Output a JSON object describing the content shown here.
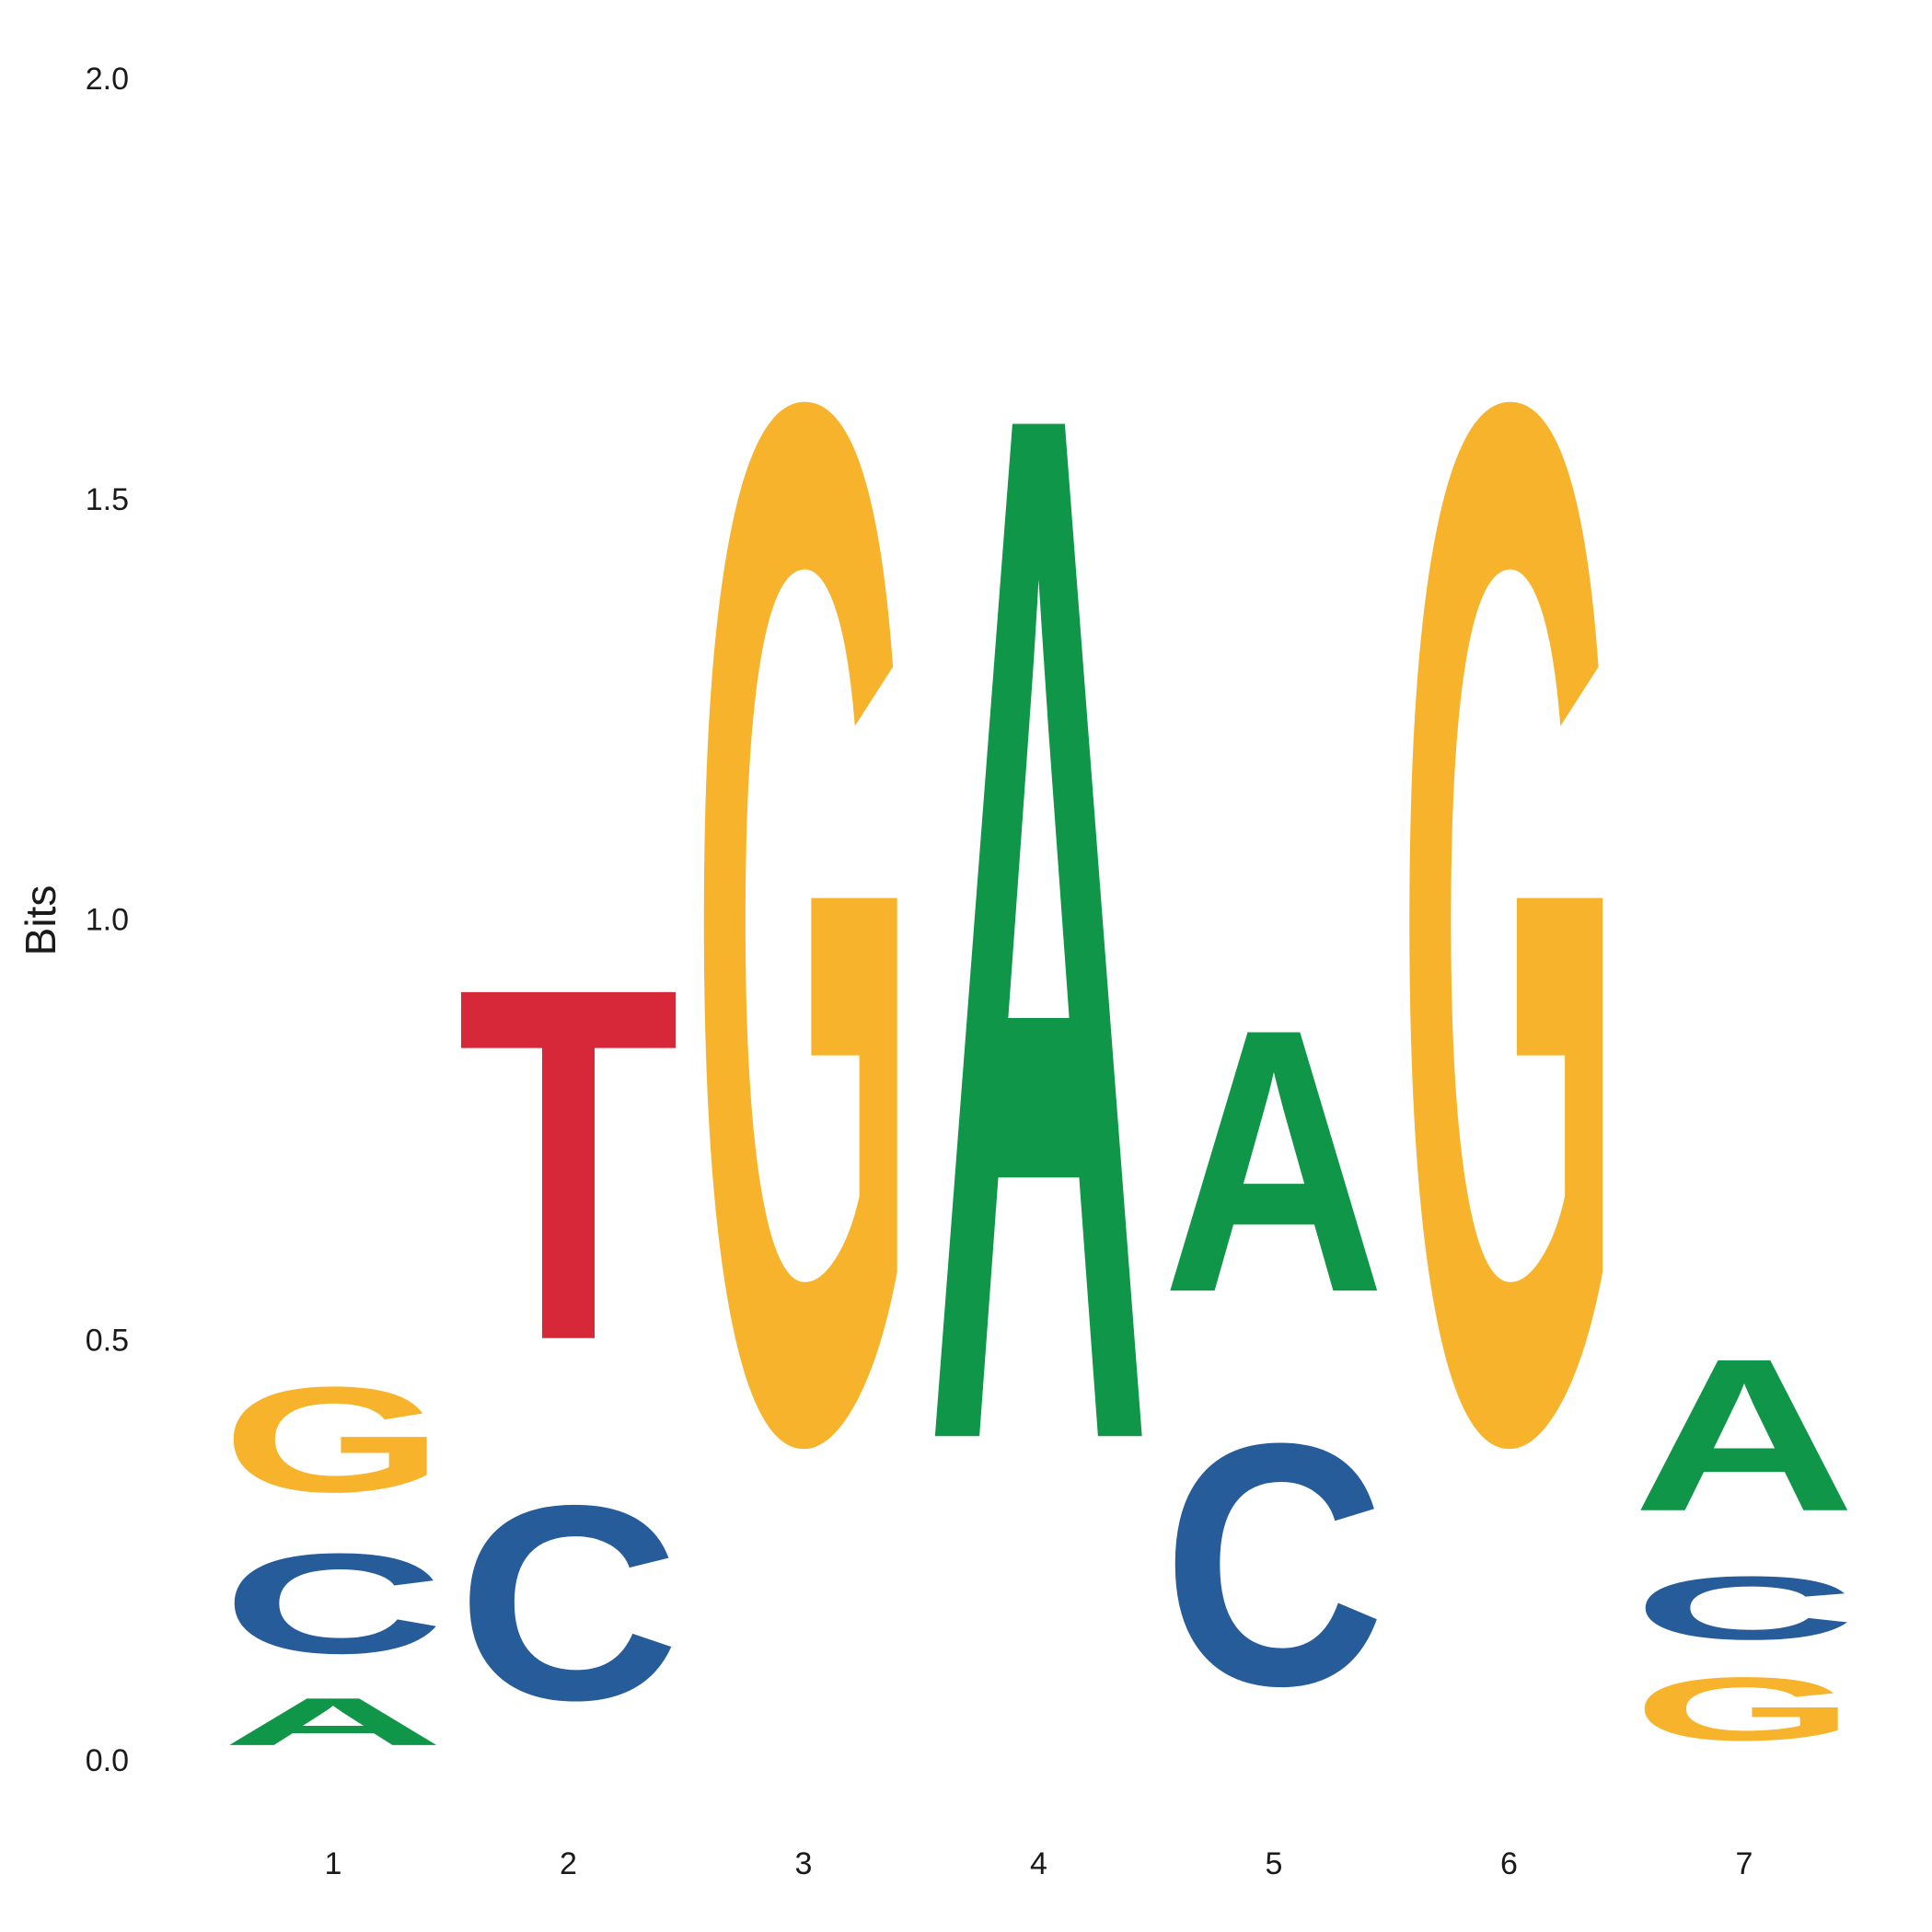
{
  "chart_data": {
    "type": "sequence-logo",
    "ylabel": "Bits",
    "ylim": [
      0,
      2.0
    ],
    "y_ticks": [
      "0.0",
      "0.5",
      "1.0",
      "1.5",
      "2.0"
    ],
    "positions": [
      "1",
      "2",
      "3",
      "4",
      "5",
      "6",
      "7"
    ],
    "columns": [
      {
        "position": "1",
        "letters": [
          {
            "base": "A",
            "bits": 0.09
          },
          {
            "base": "C",
            "bits": 0.19
          },
          {
            "base": "G",
            "bits": 0.2
          }
        ]
      },
      {
        "position": "2",
        "letters": [
          {
            "base": "C",
            "bits": 0.37
          },
          {
            "base": "T",
            "bits": 0.67
          }
        ]
      },
      {
        "position": "3",
        "letters": [
          {
            "base": "G",
            "bits": 1.97
          }
        ]
      },
      {
        "position": "4",
        "letters": [
          {
            "base": "A",
            "bits": 1.96
          }
        ]
      },
      {
        "position": "5",
        "letters": [
          {
            "base": "C",
            "bits": 0.46
          },
          {
            "base": "A",
            "bits": 0.5
          }
        ]
      },
      {
        "position": "6",
        "letters": [
          {
            "base": "G",
            "bits": 1.97
          }
        ]
      },
      {
        "position": "7",
        "letters": [
          {
            "base": "G",
            "bits": 0.12
          },
          {
            "base": "C",
            "bits": 0.12
          },
          {
            "base": "A",
            "bits": 0.29
          }
        ]
      }
    ],
    "colors": {
      "A": "#109648",
      "C": "#255c99",
      "G": "#f7b32b",
      "T": "#d62839"
    }
  }
}
